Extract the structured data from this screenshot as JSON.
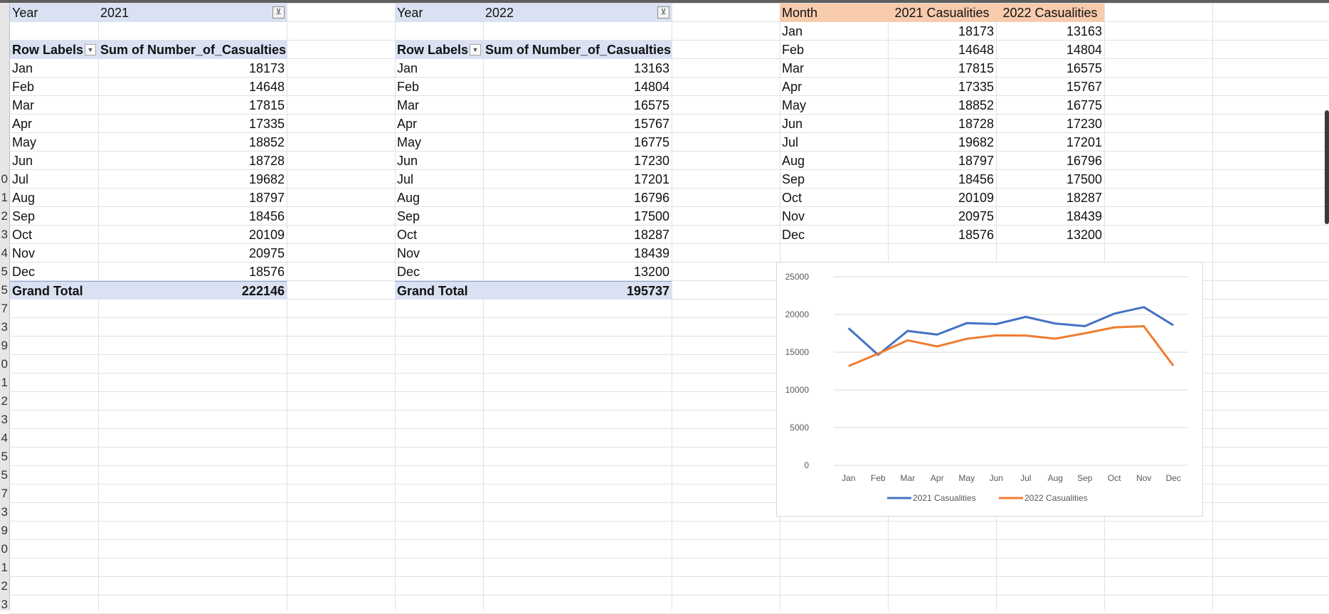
{
  "pivot2021": {
    "filter_label": "Year",
    "filter_value": "2021",
    "col_row_labels": "Row Labels",
    "col_sum": "Sum of Number_of_Casualties",
    "rows": [
      {
        "m": "Jan",
        "v": "18173"
      },
      {
        "m": "Feb",
        "v": "14648"
      },
      {
        "m": "Mar",
        "v": "17815"
      },
      {
        "m": "Apr",
        "v": "17335"
      },
      {
        "m": "May",
        "v": "18852"
      },
      {
        "m": "Jun",
        "v": "18728"
      },
      {
        "m": "Jul",
        "v": "19682"
      },
      {
        "m": "Aug",
        "v": "18797"
      },
      {
        "m": "Sep",
        "v": "18456"
      },
      {
        "m": "Oct",
        "v": "20109"
      },
      {
        "m": "Nov",
        "v": "20975"
      },
      {
        "m": "Dec",
        "v": "18576"
      }
    ],
    "total_label": "Grand Total",
    "total_value": "222146"
  },
  "pivot2022": {
    "filter_label": "Year",
    "filter_value": "2022",
    "col_row_labels": "Row Labels",
    "col_sum": "Sum of Number_of_Casualties",
    "rows": [
      {
        "m": "Jan",
        "v": "13163"
      },
      {
        "m": "Feb",
        "v": "14804"
      },
      {
        "m": "Mar",
        "v": "16575"
      },
      {
        "m": "Apr",
        "v": "15767"
      },
      {
        "m": "May",
        "v": "16775"
      },
      {
        "m": "Jun",
        "v": "17230"
      },
      {
        "m": "Jul",
        "v": "17201"
      },
      {
        "m": "Aug",
        "v": "16796"
      },
      {
        "m": "Sep",
        "v": "17500"
      },
      {
        "m": "Oct",
        "v": "18287"
      },
      {
        "m": "Nov",
        "v": "18439"
      },
      {
        "m": "Dec",
        "v": "13200"
      }
    ],
    "total_label": "Grand Total",
    "total_value": "195737"
  },
  "summary": {
    "headers": [
      "Month",
      "2021 Casualities",
      "2022 Casualities"
    ],
    "rows": [
      [
        "Jan",
        "18173",
        "13163"
      ],
      [
        "Feb",
        "14648",
        "14804"
      ],
      [
        "Mar",
        "17815",
        "16575"
      ],
      [
        "Apr",
        "17335",
        "15767"
      ],
      [
        "May",
        "18852",
        "16775"
      ],
      [
        "Jun",
        "18728",
        "17230"
      ],
      [
        "Jul",
        "19682",
        "17201"
      ],
      [
        "Aug",
        "18797",
        "16796"
      ],
      [
        "Sep",
        "18456",
        "17500"
      ],
      [
        "Oct",
        "20109",
        "18287"
      ],
      [
        "Nov",
        "20975",
        "18439"
      ],
      [
        "Dec",
        "18576",
        "13200"
      ]
    ]
  },
  "row_numbers": [
    "",
    "",
    "",
    "",
    "",
    "",
    "",
    "",
    "",
    "0",
    "1",
    "2",
    "3",
    "4",
    "5",
    "5",
    "7",
    "3",
    "9",
    "0",
    "1",
    "2",
    "3",
    "4",
    "5",
    "5",
    "7",
    "3",
    "9",
    "0",
    "1",
    "2",
    "3"
  ],
  "colors": {
    "pivot_header": "#d9e1f2",
    "table_header": "#f8cbad",
    "series_2021": "#4472c4",
    "series_2022": "#ed7d31"
  },
  "icons": {
    "filter": "filter-icon",
    "dropdown": "dropdown-arrow-icon"
  },
  "chart_data": {
    "type": "line",
    "categories": [
      "Jan",
      "Feb",
      "Mar",
      "Apr",
      "May",
      "Jun",
      "Jul",
      "Aug",
      "Sep",
      "Oct",
      "Nov",
      "Dec"
    ],
    "series": [
      {
        "name": "2021 Casualities",
        "values": [
          18173,
          14648,
          17815,
          17335,
          18852,
          18728,
          19682,
          18797,
          18456,
          20109,
          20975,
          18576
        ]
      },
      {
        "name": "2022 Casualities",
        "values": [
          13163,
          14804,
          16575,
          15767,
          16775,
          17230,
          17201,
          16796,
          17500,
          18287,
          18439,
          13200
        ]
      }
    ],
    "yticks": [
      0,
      5000,
      10000,
      15000,
      20000,
      25000
    ],
    "ylim": [
      0,
      25000
    ],
    "grid": true,
    "legend": "bottom"
  }
}
